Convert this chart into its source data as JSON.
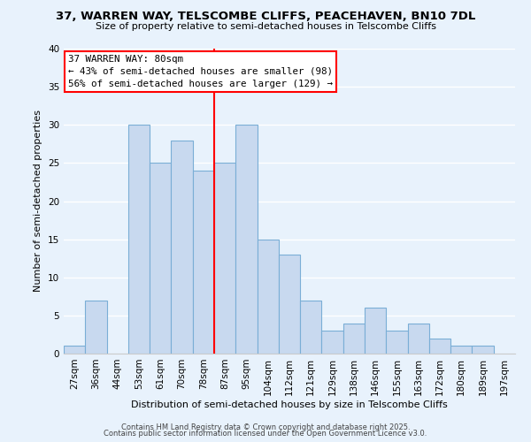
{
  "title_line1": "37, WARREN WAY, TELSCOMBE CLIFFS, PEACEHAVEN, BN10 7DL",
  "title_line2": "Size of property relative to semi-detached houses in Telscombe Cliffs",
  "xlabel": "Distribution of semi-detached houses by size in Telscombe Cliffs",
  "ylabel": "Number of semi-detached properties",
  "bin_labels": [
    "27sqm",
    "36sqm",
    "44sqm",
    "53sqm",
    "61sqm",
    "70sqm",
    "78sqm",
    "87sqm",
    "95sqm",
    "104sqm",
    "112sqm",
    "121sqm",
    "129sqm",
    "138sqm",
    "146sqm",
    "155sqm",
    "163sqm",
    "172sqm",
    "180sqm",
    "189sqm",
    "197sqm"
  ],
  "bar_values": [
    1,
    7,
    0,
    30,
    25,
    28,
    24,
    25,
    30,
    15,
    13,
    7,
    3,
    4,
    6,
    3,
    4,
    2,
    1,
    1,
    0
  ],
  "bar_color": "#c8d9ef",
  "bar_edge_color": "#7aaed6",
  "vline_x_index": 6,
  "vline_color": "red",
  "annotation_title": "37 WARREN WAY: 80sqm",
  "annotation_line1": "← 43% of semi-detached houses are smaller (98)",
  "annotation_line2": "56% of semi-detached houses are larger (129) →",
  "annotation_box_edge": "red",
  "ylim": [
    0,
    40
  ],
  "yticks": [
    0,
    5,
    10,
    15,
    20,
    25,
    30,
    35,
    40
  ],
  "footer_line1": "Contains HM Land Registry data © Crown copyright and database right 2025.",
  "footer_line2": "Contains public sector information licensed under the Open Government Licence v3.0.",
  "bg_color": "#e8f2fc",
  "plot_bg_color": "#e8f2fc",
  "grid_color": "white",
  "title_fontsize": 9.5,
  "subtitle_fontsize": 8.0,
  "xlabel_fontsize": 8.0,
  "ylabel_fontsize": 8.0,
  "tick_fontsize": 7.5,
  "footer_fontsize": 6.0
}
